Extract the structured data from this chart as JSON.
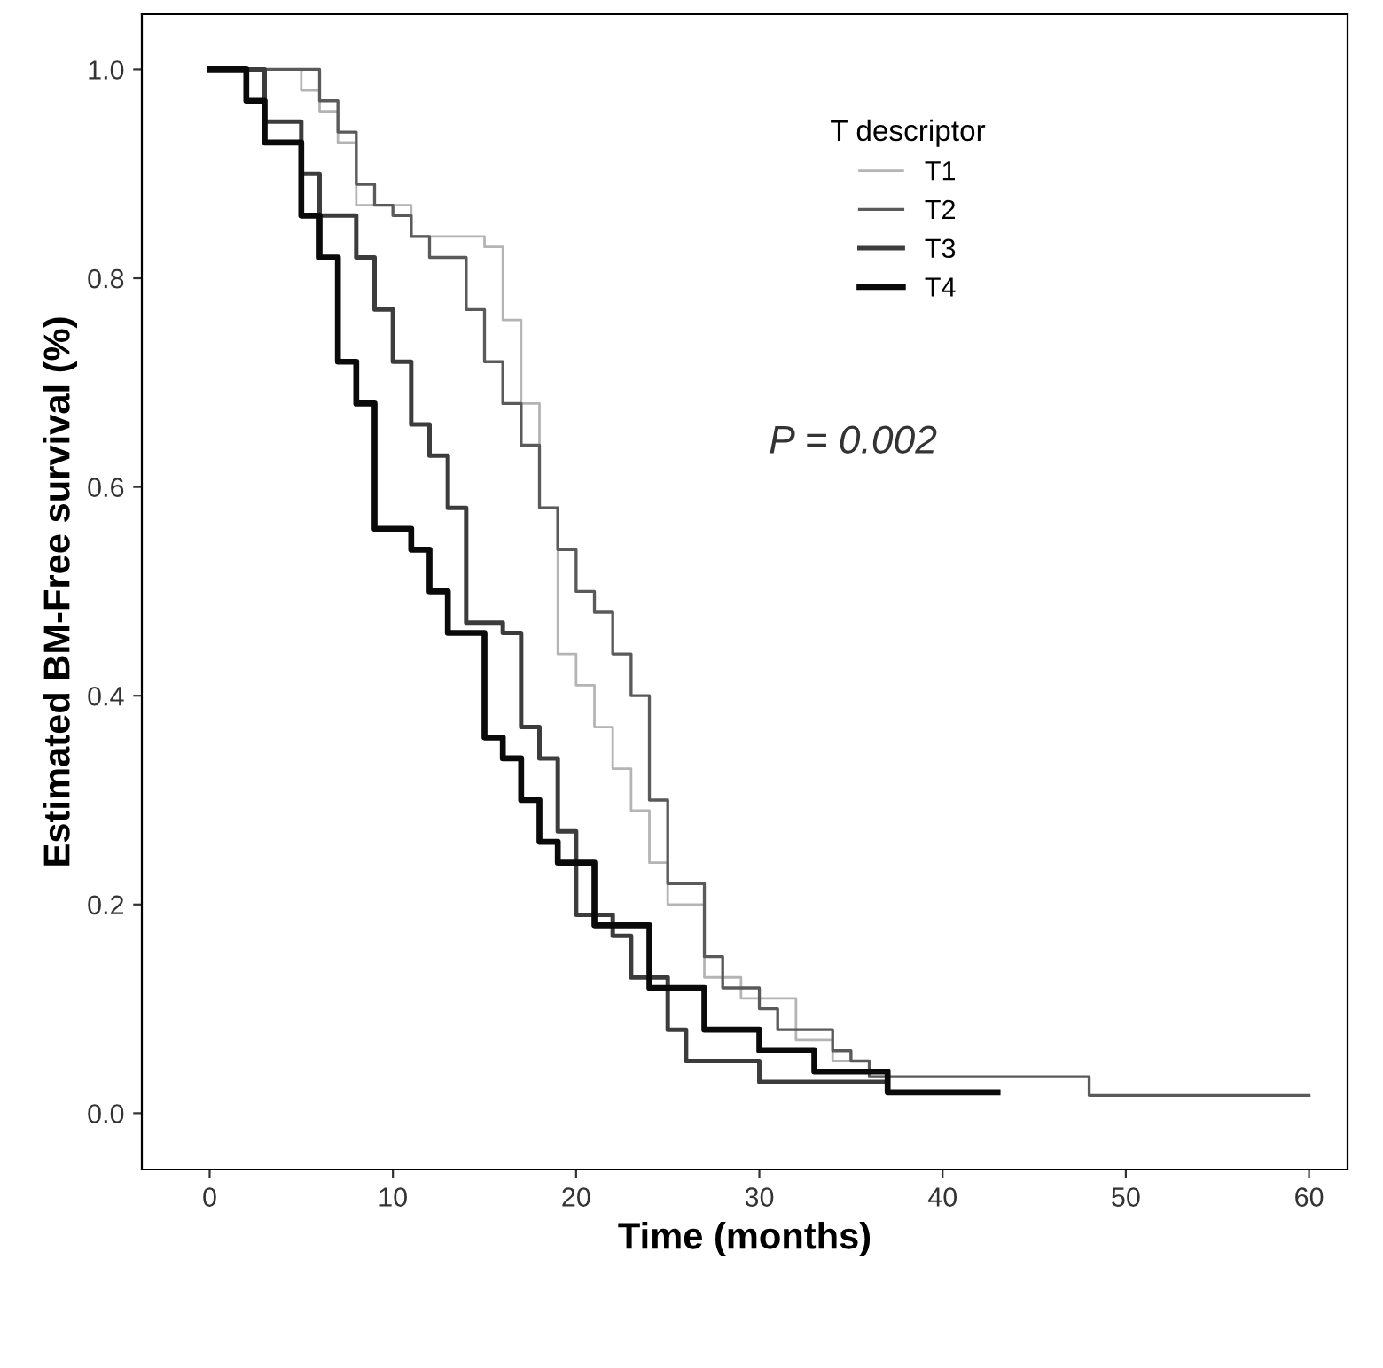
{
  "chart_data": {
    "type": "step",
    "xlabel": "Time (months)",
    "ylabel": "Estimated BM-Free survival (%)",
    "legend_title": "T descriptor",
    "legend": "top right",
    "grid": false,
    "xlim": [
      -3.7,
      62.1
    ],
    "ylim": [
      -0.054,
      1.053
    ],
    "xticks": [
      0,
      10,
      20,
      30,
      40,
      50,
      60
    ],
    "yticks": [
      {
        "value": 0,
        "label": "0.0"
      },
      {
        "value": 0.2,
        "label": "0.2"
      },
      {
        "value": 0.4,
        "label": "0.4"
      },
      {
        "value": 0.6,
        "label": "0.6"
      },
      {
        "value": 0.8,
        "label": "0.8"
      },
      {
        "value": 1.0,
        "label": "1.0"
      }
    ],
    "annotations": [
      "P = 0.002"
    ],
    "series": [
      {
        "name": "T1",
        "color": "#b4b4b4",
        "x": [
          0,
          5,
          6,
          7,
          8,
          11,
          15,
          16,
          17,
          18,
          19,
          20,
          21,
          22,
          23,
          24,
          25,
          27,
          29,
          32,
          34,
          36,
          37
        ],
        "values": [
          1.0,
          0.98,
          0.96,
          0.93,
          0.87,
          0.84,
          0.83,
          0.76,
          0.68,
          0.58,
          0.44,
          0.41,
          0.37,
          0.33,
          0.29,
          0.24,
          0.2,
          0.13,
          0.11,
          0.07,
          0.05,
          0.035,
          0.035
        ]
      },
      {
        "name": "T2",
        "color": "#5a5a5a",
        "x": [
          0,
          6,
          7,
          8,
          9,
          10,
          11,
          12,
          14,
          15,
          16,
          17,
          18,
          19,
          20,
          21,
          22,
          23,
          24,
          25,
          27,
          28,
          30,
          31,
          34,
          35,
          36,
          48,
          60
        ],
        "values": [
          1.0,
          0.97,
          0.94,
          0.89,
          0.87,
          0.86,
          0.84,
          0.82,
          0.77,
          0.72,
          0.68,
          0.64,
          0.58,
          0.54,
          0.5,
          0.48,
          0.44,
          0.4,
          0.3,
          0.22,
          0.15,
          0.12,
          0.1,
          0.08,
          0.06,
          0.05,
          0.035,
          0.017,
          0.017
        ]
      },
      {
        "name": "T3",
        "color": "#3c3c3c",
        "x": [
          0,
          3,
          5,
          6,
          8,
          9,
          10,
          11,
          12,
          13,
          14,
          16,
          17,
          18,
          19,
          20,
          22,
          23,
          25,
          26,
          30,
          37
        ],
        "values": [
          1.0,
          0.95,
          0.9,
          0.86,
          0.82,
          0.77,
          0.72,
          0.66,
          0.63,
          0.58,
          0.47,
          0.46,
          0.37,
          0.34,
          0.27,
          0.19,
          0.17,
          0.13,
          0.08,
          0.05,
          0.03,
          0.03
        ]
      },
      {
        "name": "T4",
        "color": "#0a0a0a",
        "x": [
          0,
          2,
          3,
          5,
          6,
          7,
          8,
          9,
          11,
          12,
          13,
          15,
          16,
          17,
          18,
          19,
          21,
          24,
          27,
          30,
          33,
          37,
          43
        ],
        "values": [
          1.0,
          0.97,
          0.93,
          0.86,
          0.82,
          0.72,
          0.68,
          0.56,
          0.54,
          0.5,
          0.46,
          0.36,
          0.34,
          0.3,
          0.26,
          0.24,
          0.18,
          0.12,
          0.08,
          0.06,
          0.04,
          0.02,
          0.02
        ]
      }
    ]
  }
}
